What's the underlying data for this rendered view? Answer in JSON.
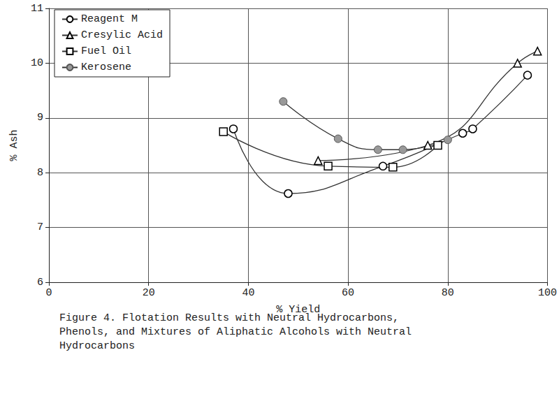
{
  "chart_data": {
    "type": "line",
    "title": "Figure 4. Flotation Results with Neutral Hydrocarbons, Phenols, and Mixtures of Aliphatic Alcohols with Neutral Hydrocarbons",
    "x_label": "% Yield",
    "y_label": "% Ash",
    "xlim": [
      0,
      100
    ],
    "xticks": [
      0,
      20,
      40,
      60,
      80,
      100
    ],
    "ylim": [
      6,
      11
    ],
    "yticks": [
      6,
      7,
      8,
      9,
      10,
      11
    ],
    "grid": true,
    "legend": "upper left",
    "series": [
      {
        "name": "Reagent M",
        "color": "#000000",
        "marker": "circle_open",
        "line_style": "smooth",
        "x": [
          37,
          48,
          67,
          83,
          85,
          96
        ],
        "values": [
          8.8,
          7.62,
          8.12,
          8.72,
          8.8,
          9.78
        ]
      },
      {
        "name": "Cresylic Acid",
        "color": "#000000",
        "marker": "triangle_open",
        "line_style": "smooth",
        "x": [
          54,
          76,
          94,
          98
        ],
        "values": [
          8.22,
          8.5,
          10.0,
          10.22
        ]
      },
      {
        "name": "Fuel Oil",
        "color": "#000000",
        "marker": "square_open",
        "line_style": "smooth",
        "x": [
          35,
          56,
          69,
          78
        ],
        "values": [
          8.75,
          8.12,
          8.1,
          8.5
        ]
      },
      {
        "name": "Kerosene",
        "color": "#999999",
        "marker": "circle_filled",
        "line_style": "smooth",
        "x": [
          47,
          58,
          66,
          71,
          80
        ],
        "values": [
          9.3,
          8.62,
          8.42,
          8.42,
          8.6
        ]
      }
    ]
  }
}
